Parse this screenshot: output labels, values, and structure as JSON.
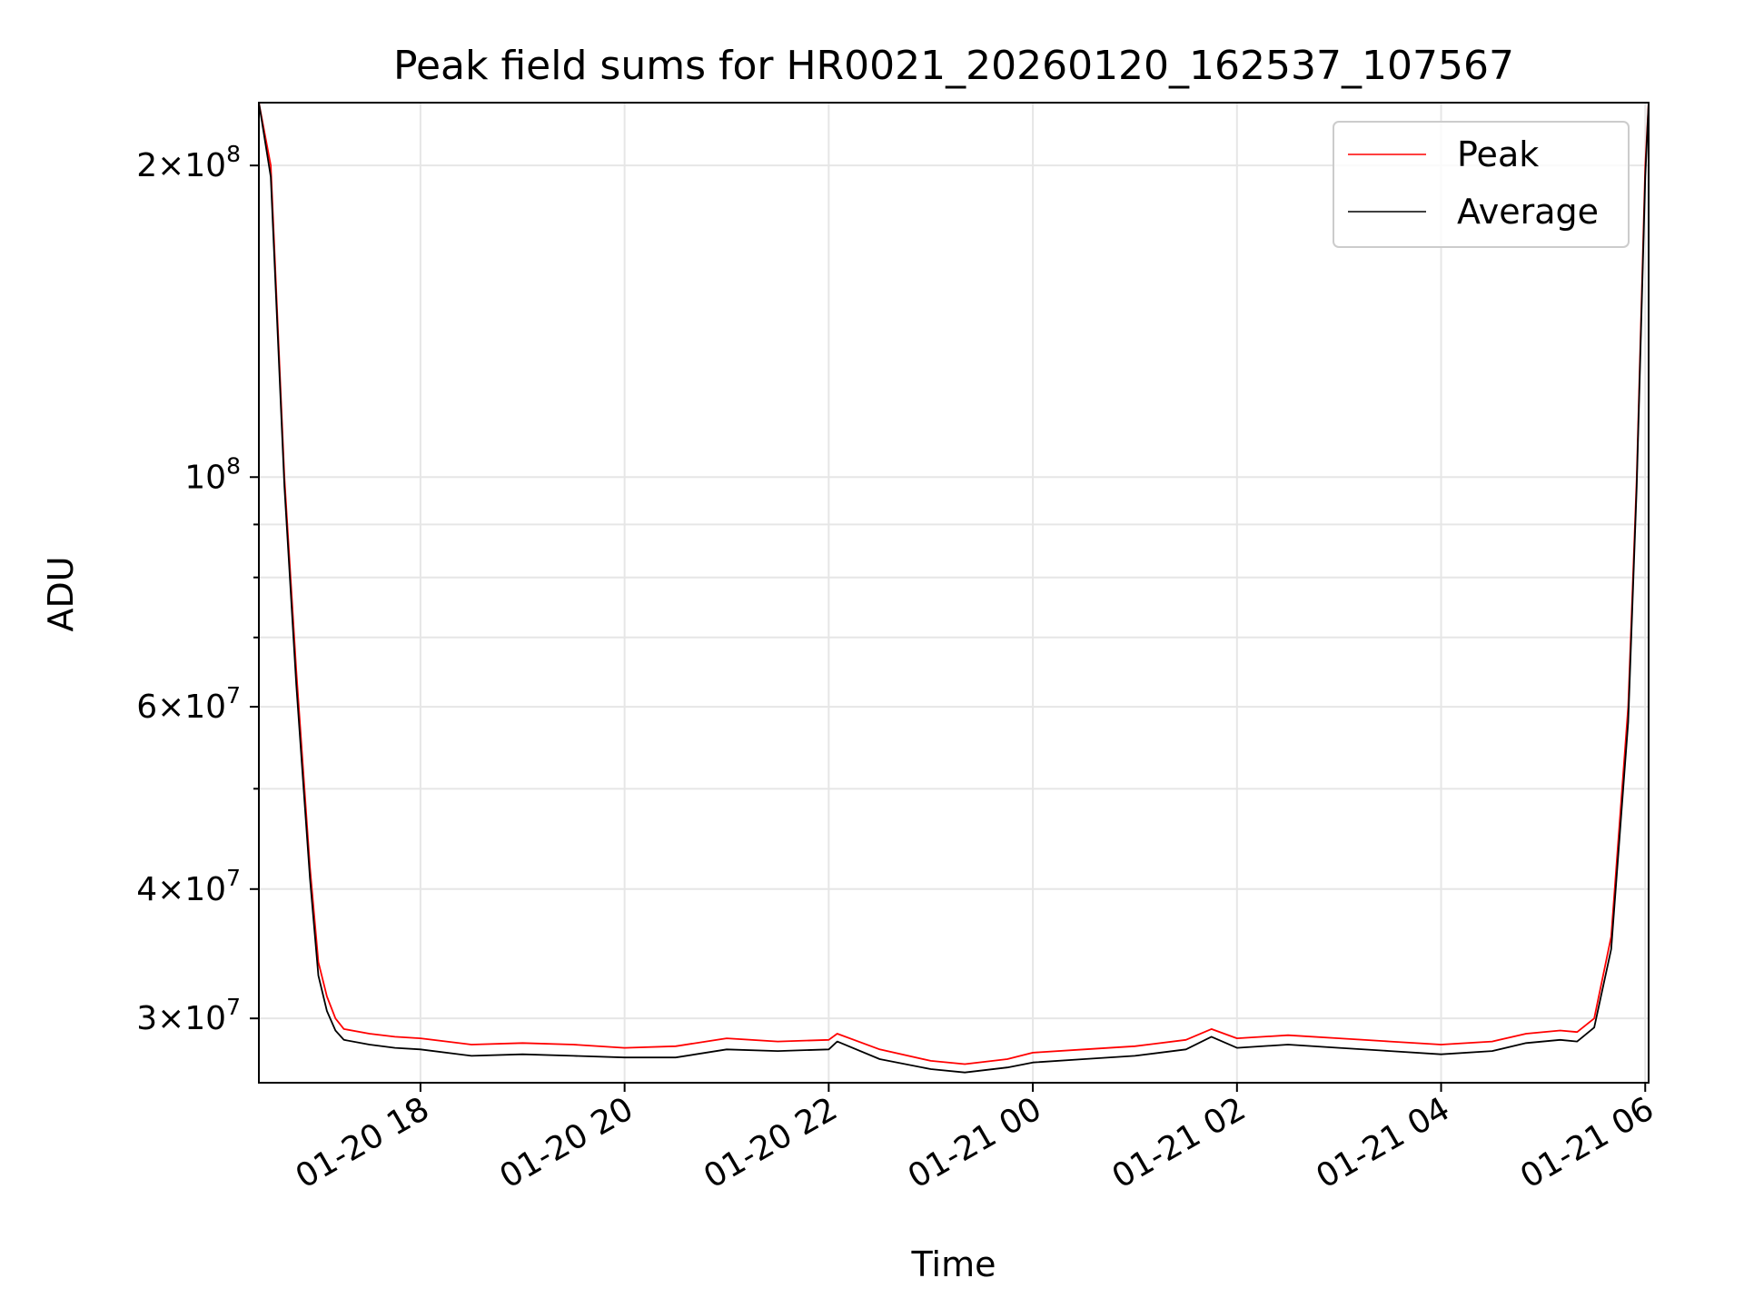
{
  "chart_data": {
    "type": "line",
    "title": "Peak field sums for HR0021_20260120_162537_107567",
    "xlabel": "Time",
    "ylabel": "ADU",
    "yscale": "log",
    "grid": true,
    "legend_placement": "top-right",
    "xlim": [
      "2026-01-20 16:25",
      "2026-01-21 06:02"
    ],
    "ylim": [
      26000000,
      230000000
    ],
    "x_ticks": [
      {
        "value": "2026-01-20 18:00",
        "label": "01-20 18"
      },
      {
        "value": "2026-01-20 20:00",
        "label": "01-20 20"
      },
      {
        "value": "2026-01-20 22:00",
        "label": "01-20 22"
      },
      {
        "value": "2026-01-21 00:00",
        "label": "01-21 00"
      },
      {
        "value": "2026-01-21 02:00",
        "label": "01-21 02"
      },
      {
        "value": "2026-01-21 04:00",
        "label": "01-21 04"
      },
      {
        "value": "2026-01-21 06:00",
        "label": "01-21 06"
      }
    ],
    "y_ticks_major": [
      {
        "value": 30000000,
        "mantissa": "3",
        "base": "10",
        "exp": "7"
      },
      {
        "value": 40000000,
        "mantissa": "4",
        "base": "10",
        "exp": "7"
      },
      {
        "value": 60000000,
        "mantissa": "6",
        "base": "10",
        "exp": "7"
      },
      {
        "value": 100000000,
        "mantissa": "",
        "base": "10",
        "exp": "8"
      },
      {
        "value": 200000000,
        "mantissa": "2",
        "base": "10",
        "exp": "8"
      }
    ],
    "y_ticks_minor": [
      50000000,
      70000000,
      80000000,
      90000000
    ],
    "series": [
      {
        "name": "Peak",
        "color": "#ff0000",
        "x": [
          "2026-01-20 16:25",
          "2026-01-20 16:32",
          "2026-01-20 16:40",
          "2026-01-20 16:47",
          "2026-01-20 16:55",
          "2026-01-20 17:00",
          "2026-01-20 17:05",
          "2026-01-20 17:10",
          "2026-01-20 17:15",
          "2026-01-20 17:30",
          "2026-01-20 17:45",
          "2026-01-20 18:00",
          "2026-01-20 18:30",
          "2026-01-20 19:00",
          "2026-01-20 19:30",
          "2026-01-20 20:00",
          "2026-01-20 20:30",
          "2026-01-20 21:00",
          "2026-01-20 21:30",
          "2026-01-20 22:00",
          "2026-01-20 22:05",
          "2026-01-20 22:30",
          "2026-01-20 23:00",
          "2026-01-20 23:20",
          "2026-01-20 23:45",
          "2026-01-21 00:00",
          "2026-01-21 00:30",
          "2026-01-21 01:00",
          "2026-01-21 01:30",
          "2026-01-21 01:45",
          "2026-01-21 02:00",
          "2026-01-21 02:30",
          "2026-01-21 03:00",
          "2026-01-21 03:30",
          "2026-01-21 04:00",
          "2026-01-21 04:30",
          "2026-01-21 04:50",
          "2026-01-21 05:10",
          "2026-01-21 05:20",
          "2026-01-21 05:30",
          "2026-01-21 05:40",
          "2026-01-21 05:50",
          "2026-01-21 05:55",
          "2026-01-21 06:00",
          "2026-01-21 06:02"
        ],
        "values": [
          230000000,
          200000000,
          100000000,
          65000000,
          42000000,
          34000000,
          31500000,
          30000000,
          29300000,
          29000000,
          28800000,
          28700000,
          28300000,
          28400000,
          28300000,
          28100000,
          28200000,
          28700000,
          28500000,
          28600000,
          29000000,
          28000000,
          27300000,
          27100000,
          27400000,
          27800000,
          28000000,
          28200000,
          28600000,
          29300000,
          28700000,
          28900000,
          28700000,
          28500000,
          28300000,
          28500000,
          29000000,
          29200000,
          29100000,
          30000000,
          36000000,
          60000000,
          100000000,
          200000000,
          230000000
        ]
      },
      {
        "name": "Average",
        "color": "#000000",
        "x": [
          "2026-01-20 16:25",
          "2026-01-20 16:32",
          "2026-01-20 16:40",
          "2026-01-20 16:47",
          "2026-01-20 16:55",
          "2026-01-20 17:00",
          "2026-01-20 17:05",
          "2026-01-20 17:10",
          "2026-01-20 17:15",
          "2026-01-20 17:30",
          "2026-01-20 17:45",
          "2026-01-20 18:00",
          "2026-01-20 18:30",
          "2026-01-20 19:00",
          "2026-01-20 19:30",
          "2026-01-20 20:00",
          "2026-01-20 20:30",
          "2026-01-20 21:00",
          "2026-01-20 21:30",
          "2026-01-20 22:00",
          "2026-01-20 22:05",
          "2026-01-20 22:30",
          "2026-01-20 23:00",
          "2026-01-20 23:20",
          "2026-01-20 23:45",
          "2026-01-21 00:00",
          "2026-01-21 00:30",
          "2026-01-21 01:00",
          "2026-01-21 01:30",
          "2026-01-21 01:45",
          "2026-01-21 02:00",
          "2026-01-21 02:30",
          "2026-01-21 03:00",
          "2026-01-21 03:30",
          "2026-01-21 04:00",
          "2026-01-21 04:30",
          "2026-01-21 04:50",
          "2026-01-21 05:10",
          "2026-01-21 05:20",
          "2026-01-21 05:30",
          "2026-01-21 05:40",
          "2026-01-21 05:50",
          "2026-01-21 05:55",
          "2026-01-21 06:00",
          "2026-01-21 06:02"
        ],
        "values": [
          230000000,
          195000000,
          98000000,
          63000000,
          41000000,
          33000000,
          30500000,
          29200000,
          28600000,
          28300000,
          28100000,
          28000000,
          27600000,
          27700000,
          27600000,
          27500000,
          27500000,
          28000000,
          27900000,
          28000000,
          28500000,
          27400000,
          26800000,
          26600000,
          26900000,
          27200000,
          27400000,
          27600000,
          28000000,
          28800000,
          28100000,
          28300000,
          28100000,
          27900000,
          27700000,
          27900000,
          28400000,
          28600000,
          28500000,
          29400000,
          35000000,
          58000000,
          98000000,
          195000000,
          230000000
        ]
      }
    ]
  }
}
